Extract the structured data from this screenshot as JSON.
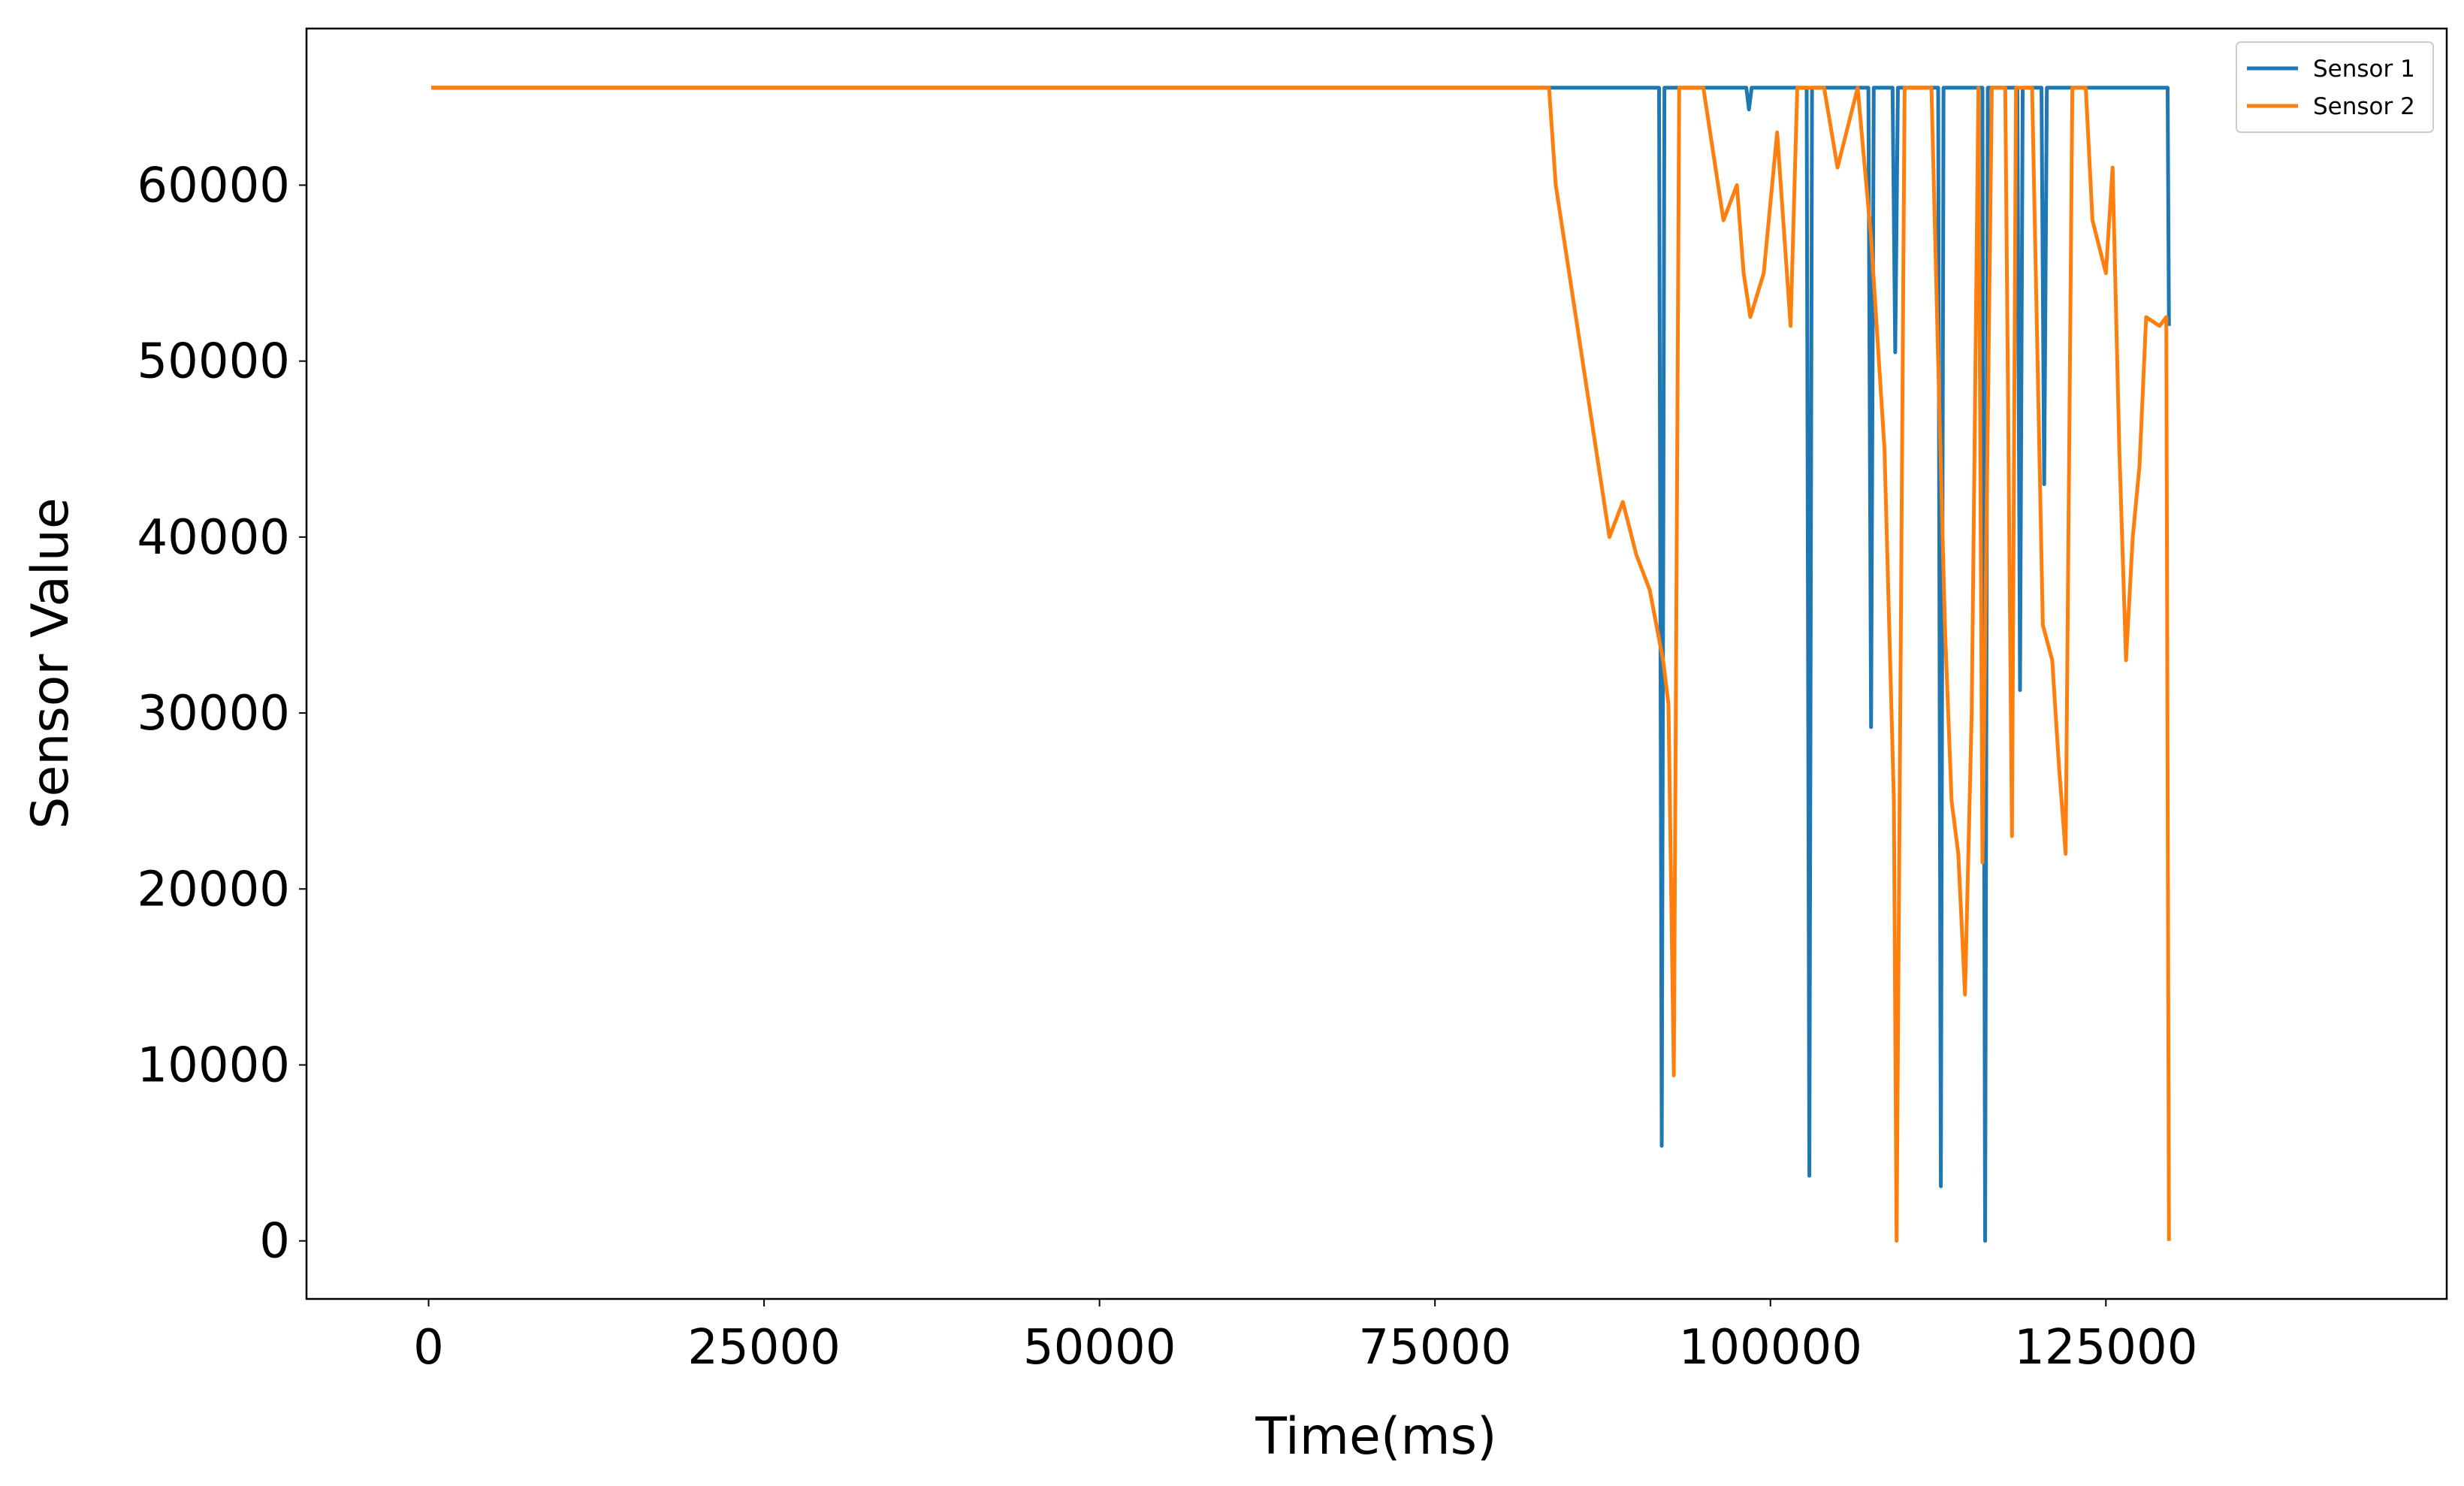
{
  "chart_data": {
    "type": "line",
    "xlabel": "Time(ms)",
    "ylabel": "Sensor Value",
    "xlim": [
      -9100,
      150400
    ],
    "ylim": [
      -3300,
      68900
    ],
    "xticks": [
      0,
      25000,
      50000,
      75000,
      100000,
      125000
    ],
    "yticks": [
      0,
      10000,
      20000,
      30000,
      40000,
      50000,
      60000
    ],
    "grid": false,
    "legend": "upper right",
    "series": [
      {
        "name": "Sensor 1",
        "color": "#1f77b4",
        "x": [
          200,
          91700,
          91900,
          92100,
          98200,
          98400,
          98600,
          102700,
          102900,
          103100,
          107300,
          107500,
          107700,
          109100,
          109300,
          109500,
          112500,
          112700,
          112900,
          115800,
          116000,
          116200,
          118400,
          118600,
          118800,
          120200,
          120400,
          120600,
          129600,
          129700
        ],
        "values": [
          65535,
          65535,
          5400,
          65535,
          65535,
          64300,
          65535,
          65535,
          3700,
          65535,
          65535,
          29200,
          65535,
          65535,
          50500,
          65535,
          65535,
          3100,
          65535,
          65535,
          0,
          65535,
          65535,
          31300,
          65535,
          65535,
          43000,
          65535,
          65535,
          52000
        ]
      },
      {
        "name": "Sensor 2",
        "color": "#ff7f0e",
        "x": [
          200,
          82800,
          83500,
          84000,
          85000,
          86000,
          87000,
          88000,
          89000,
          90000,
          91000,
          92000,
          92400,
          92800,
          93200,
          95000,
          96500,
          97500,
          98000,
          98500,
          99500,
          100500,
          101500,
          102000,
          104000,
          105000,
          106500,
          107500,
          108500,
          109200,
          109400,
          110000,
          112000,
          112500,
          113000,
          113500,
          114000,
          114500,
          115000,
          115500,
          115800,
          116500,
          117500,
          118000,
          118300,
          119500,
          120300,
          121000,
          121500,
          122000,
          122500,
          123500,
          124000,
          125000,
          125500,
          126000,
          126500,
          127000,
          127500,
          128000,
          129000,
          129500,
          129700
        ],
        "values": [
          65535,
          65535,
          65535,
          60000,
          55000,
          50000,
          45000,
          40000,
          42000,
          39000,
          37000,
          33000,
          30500,
          9400,
          65535,
          65535,
          58000,
          60000,
          55000,
          52500,
          55000,
          63000,
          52000,
          65535,
          65535,
          61000,
          65535,
          57000,
          45000,
          25000,
          0,
          65535,
          65535,
          50000,
          35000,
          25000,
          22000,
          14000,
          30000,
          65535,
          21500,
          65535,
          65535,
          23000,
          65535,
          65535,
          35000,
          33000,
          27000,
          22000,
          65535,
          65535,
          58000,
          55000,
          61000,
          45000,
          33000,
          40000,
          44000,
          52500,
          52000,
          52500,
          0
        ]
      }
    ]
  }
}
